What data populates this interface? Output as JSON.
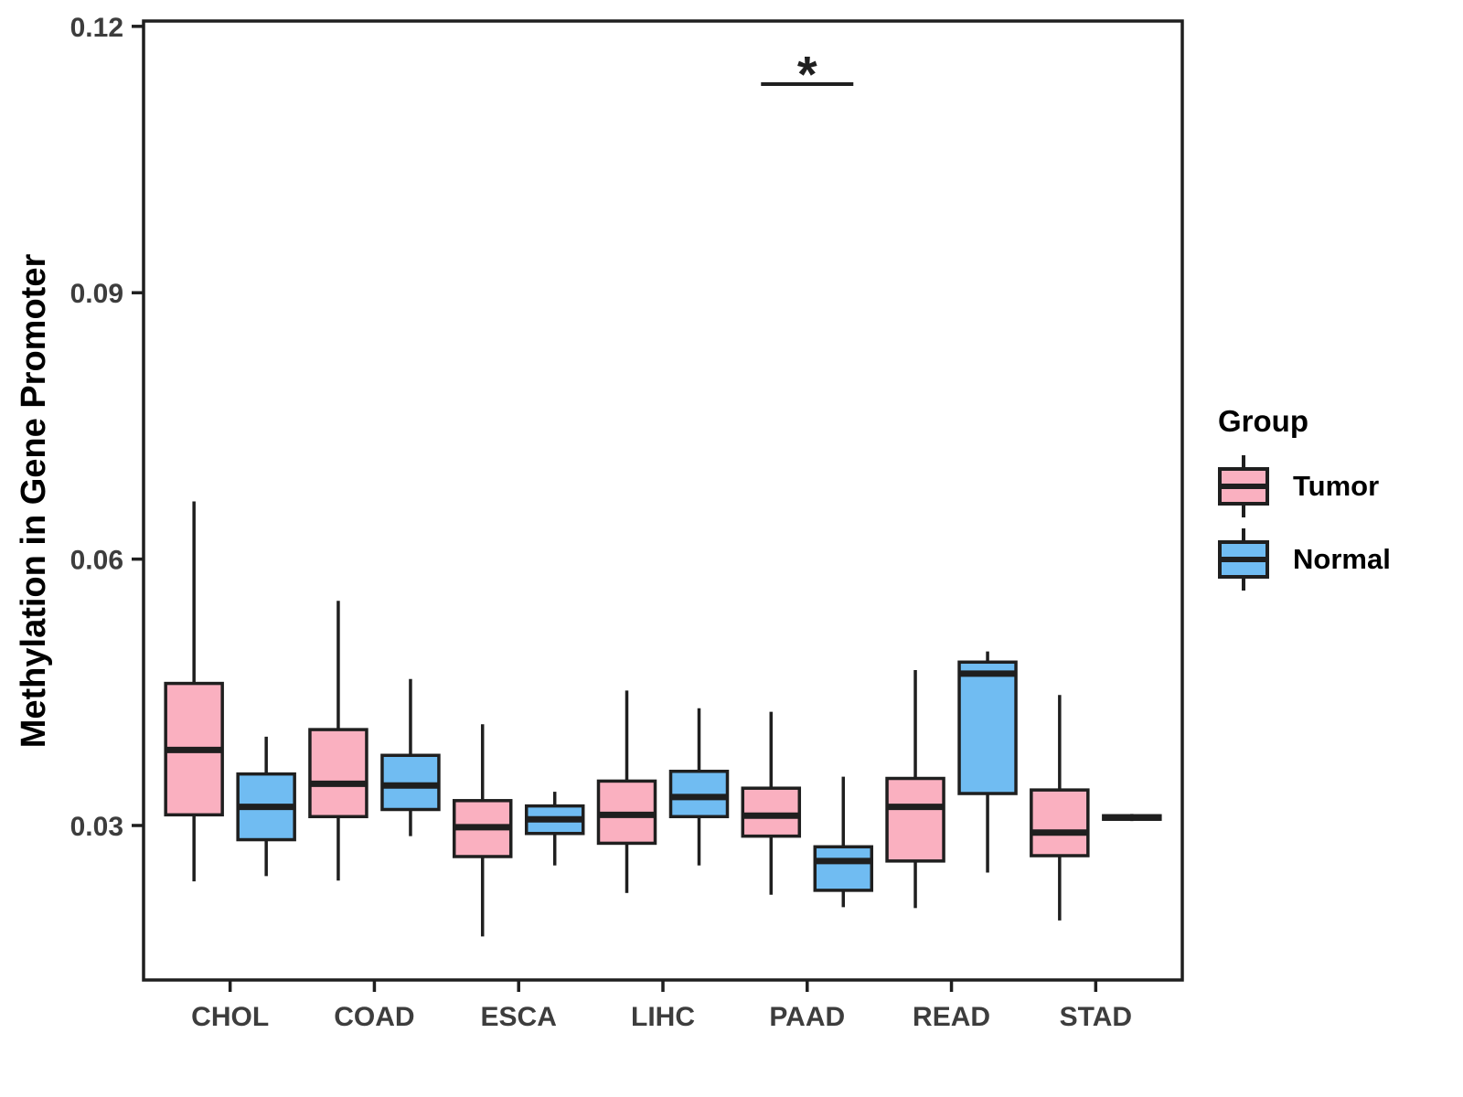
{
  "figure": {
    "y_axis_title": "Methylation in Gene Promoter"
  },
  "legend": {
    "title": "Group",
    "items": [
      {
        "label": "Tumor",
        "color": "#FAB0C0"
      },
      {
        "label": "Normal",
        "color": "#70BCF2"
      }
    ]
  },
  "chart_data": {
    "type": "boxplot",
    "title": "",
    "xlabel": "",
    "ylabel": "Methylation in Gene Promoter",
    "categories": [
      "CHOL",
      "COAD",
      "ESCA",
      "LIHC",
      "PAAD",
      "READ",
      "STAD"
    ],
    "yticks": [
      0.03,
      0.06,
      0.09,
      0.12
    ],
    "ylim": [
      0.0126,
      0.1206
    ],
    "grid": false,
    "legend_position": "right",
    "line_color": "#1f1f1f",
    "series": [
      {
        "name": "Tumor",
        "color": "#FAB0C0",
        "boxes": [
          {
            "whisker_low": 0.0237,
            "q1": 0.0312,
            "median": 0.0385,
            "q3": 0.046,
            "whisker_high": 0.0665
          },
          {
            "whisker_low": 0.0238,
            "q1": 0.031,
            "median": 0.0347,
            "q3": 0.0408,
            "whisker_high": 0.0553
          },
          {
            "whisker_low": 0.0175,
            "q1": 0.0265,
            "median": 0.0298,
            "q3": 0.0328,
            "whisker_high": 0.0414
          },
          {
            "whisker_low": 0.0224,
            "q1": 0.028,
            "median": 0.0312,
            "q3": 0.035,
            "whisker_high": 0.0452
          },
          {
            "whisker_low": 0.0222,
            "q1": 0.0288,
            "median": 0.0311,
            "q3": 0.0342,
            "whisker_high": 0.0428
          },
          {
            "whisker_low": 0.0207,
            "q1": 0.026,
            "median": 0.0321,
            "q3": 0.0353,
            "whisker_high": 0.0475
          },
          {
            "whisker_low": 0.0193,
            "q1": 0.0266,
            "median": 0.0292,
            "q3": 0.034,
            "whisker_high": 0.0447
          }
        ]
      },
      {
        "name": "Normal",
        "color": "#70BCF2",
        "boxes": [
          {
            "whisker_low": 0.0243,
            "q1": 0.0284,
            "median": 0.0321,
            "q3": 0.0358,
            "whisker_high": 0.04
          },
          {
            "whisker_low": 0.0288,
            "q1": 0.0318,
            "median": 0.0345,
            "q3": 0.0379,
            "whisker_high": 0.0465
          },
          {
            "whisker_low": 0.0255,
            "q1": 0.0291,
            "median": 0.0307,
            "q3": 0.0322,
            "whisker_high": 0.0338
          },
          {
            "whisker_low": 0.0255,
            "q1": 0.031,
            "median": 0.0332,
            "q3": 0.0361,
            "whisker_high": 0.0432
          },
          {
            "whisker_low": 0.0208,
            "q1": 0.0227,
            "median": 0.026,
            "q3": 0.0276,
            "whisker_high": 0.0355
          },
          {
            "whisker_low": 0.0247,
            "q1": 0.0336,
            "median": 0.0471,
            "q3": 0.0484,
            "whisker_high": 0.0496
          },
          {
            "whisker_low": 0.0305,
            "q1": 0.0307,
            "median": 0.0309,
            "q3": 0.0311,
            "whisker_high": 0.0313
          }
        ]
      }
    ],
    "annotation": {
      "label": "*",
      "category": "PAAD",
      "bar_y": 0.1135,
      "star_y": 0.1157
    }
  }
}
